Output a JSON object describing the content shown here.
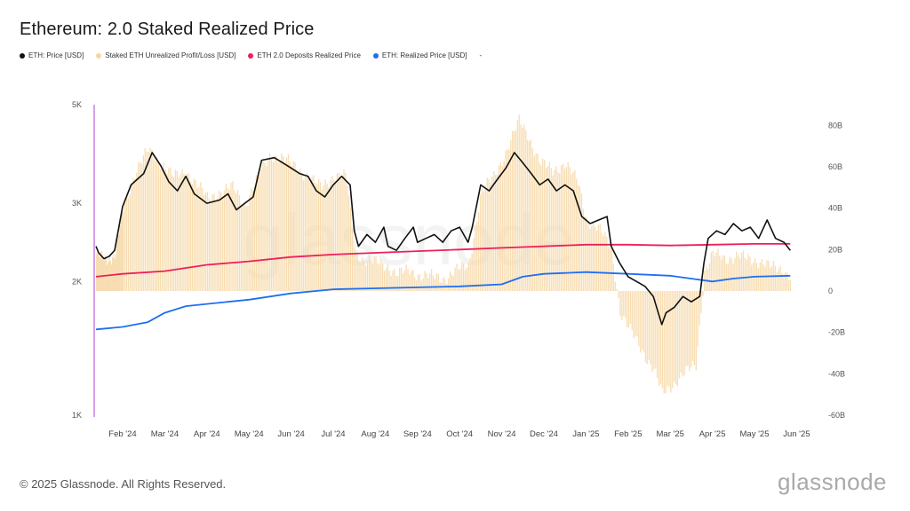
{
  "chart_data": {
    "type": "line",
    "title": "Ethereum: 2.0 Staked Realized Price",
    "legend": [
      {
        "label": "ETH: Price [USD]",
        "color": "#111111"
      },
      {
        "label": "Staked ETH Unrealized Profit/Loss [USD]",
        "color": "#f6d7a4"
      },
      {
        "label": "ETH 2.0 Deposits Realized Price",
        "color": "#ee1f59"
      },
      {
        "label": "ETH: Realized Price [USD]",
        "color": "#1f6ff0"
      },
      {
        "label": "-",
        "color": ""
      }
    ],
    "x_ticks": [
      "Feb '24",
      "Mar '24",
      "Apr '24",
      "May '24",
      "Jun '24",
      "Jul '24",
      "Aug '24",
      "Sep '24",
      "Oct '24",
      "Nov '24",
      "Dec '24",
      "Jan '25",
      "Feb '25",
      "Mar '25",
      "Apr '25",
      "May '25",
      "Jun '25"
    ],
    "y_left": {
      "scale": "log",
      "range": [
        1000,
        5000
      ],
      "ticks": [
        {
          "v": 5000,
          "label": "5K"
        },
        {
          "v": 3000,
          "label": "3K"
        },
        {
          "v": 2000,
          "label": "2K"
        },
        {
          "v": 1000,
          "label": "1K"
        }
      ]
    },
    "y_right": {
      "range": [
        -60,
        90
      ],
      "unit": "B",
      "ticks": [
        80,
        60,
        40,
        20,
        0,
        -20,
        -40,
        -60
      ],
      "tick_labels": [
        "80B",
        "60B",
        "40B",
        "20B",
        "0",
        "-20B",
        "-40B",
        "-60B"
      ]
    },
    "x_month_range": [
      0,
      17.2
    ],
    "series": [
      {
        "name": "ETH: Price [USD]",
        "color": "#111111",
        "points": [
          [
            0,
            2400
          ],
          [
            0.1,
            2320
          ],
          [
            0.3,
            2250
          ],
          [
            0.5,
            2280
          ],
          [
            0.7,
            2350
          ],
          [
            1.0,
            2950
          ],
          [
            1.2,
            3300
          ],
          [
            1.5,
            3500
          ],
          [
            1.7,
            3900
          ],
          [
            1.9,
            3650
          ],
          [
            2.1,
            3350
          ],
          [
            2.3,
            3200
          ],
          [
            2.5,
            3450
          ],
          [
            2.7,
            3150
          ],
          [
            3.0,
            3000
          ],
          [
            3.3,
            3050
          ],
          [
            3.5,
            3150
          ],
          [
            3.7,
            2900
          ],
          [
            3.9,
            3000
          ],
          [
            4.1,
            3100
          ],
          [
            4.3,
            3750
          ],
          [
            4.6,
            3800
          ],
          [
            4.9,
            3650
          ],
          [
            5.2,
            3500
          ],
          [
            5.4,
            3450
          ],
          [
            5.6,
            3200
          ],
          [
            5.8,
            3100
          ],
          [
            6.0,
            3300
          ],
          [
            6.2,
            3450
          ],
          [
            6.4,
            3300
          ],
          [
            6.5,
            2600
          ],
          [
            6.6,
            2400
          ],
          [
            6.8,
            2550
          ],
          [
            7.0,
            2450
          ],
          [
            7.2,
            2650
          ],
          [
            7.3,
            2400
          ],
          [
            7.5,
            2350
          ],
          [
            7.7,
            2500
          ],
          [
            7.9,
            2650
          ],
          [
            8.0,
            2450
          ],
          [
            8.2,
            2500
          ],
          [
            8.4,
            2550
          ],
          [
            8.6,
            2450
          ],
          [
            8.8,
            2600
          ],
          [
            9.0,
            2650
          ],
          [
            9.2,
            2450
          ],
          [
            9.3,
            2650
          ],
          [
            9.5,
            3300
          ],
          [
            9.7,
            3200
          ],
          [
            9.9,
            3400
          ],
          [
            10.1,
            3600
          ],
          [
            10.3,
            3900
          ],
          [
            10.5,
            3700
          ],
          [
            10.7,
            3500
          ],
          [
            10.9,
            3300
          ],
          [
            11.1,
            3400
          ],
          [
            11.3,
            3200
          ],
          [
            11.5,
            3300
          ],
          [
            11.7,
            3200
          ],
          [
            11.9,
            2800
          ],
          [
            12.1,
            2700
          ],
          [
            12.3,
            2750
          ],
          [
            12.5,
            2800
          ],
          [
            12.6,
            2400
          ],
          [
            12.8,
            2200
          ],
          [
            13.0,
            2050
          ],
          [
            13.2,
            2000
          ],
          [
            13.4,
            1950
          ],
          [
            13.6,
            1850
          ],
          [
            13.8,
            1600
          ],
          [
            13.9,
            1700
          ],
          [
            14.1,
            1750
          ],
          [
            14.3,
            1850
          ],
          [
            14.5,
            1800
          ],
          [
            14.7,
            1850
          ],
          [
            14.8,
            2200
          ],
          [
            14.9,
            2500
          ],
          [
            15.1,
            2600
          ],
          [
            15.3,
            2550
          ],
          [
            15.5,
            2700
          ],
          [
            15.7,
            2600
          ],
          [
            15.9,
            2650
          ],
          [
            16.1,
            2500
          ],
          [
            16.3,
            2750
          ],
          [
            16.5,
            2500
          ],
          [
            16.7,
            2450
          ],
          [
            16.85,
            2350
          ]
        ]
      },
      {
        "name": "ETH 2.0 Deposits Realized Price",
        "color": "#ee1f59",
        "points": [
          [
            0,
            2050
          ],
          [
            1,
            2080
          ],
          [
            2,
            2110
          ],
          [
            3,
            2180
          ],
          [
            4,
            2220
          ],
          [
            5,
            2270
          ],
          [
            6,
            2300
          ],
          [
            7,
            2320
          ],
          [
            8,
            2340
          ],
          [
            9,
            2360
          ],
          [
            10,
            2380
          ],
          [
            11,
            2400
          ],
          [
            12,
            2420
          ],
          [
            13,
            2420
          ],
          [
            14,
            2410
          ],
          [
            15,
            2420
          ],
          [
            16,
            2430
          ],
          [
            16.85,
            2430
          ]
        ]
      },
      {
        "name": "ETH: Realized Price [USD]",
        "color": "#1f6ff0",
        "points": [
          [
            0,
            1560
          ],
          [
            1,
            1580
          ],
          [
            1.6,
            1620
          ],
          [
            2,
            1700
          ],
          [
            2.5,
            1760
          ],
          [
            3,
            1780
          ],
          [
            4,
            1820
          ],
          [
            5,
            1880
          ],
          [
            6,
            1920
          ],
          [
            7,
            1930
          ],
          [
            8,
            1940
          ],
          [
            9,
            1950
          ],
          [
            10,
            1970
          ],
          [
            10.5,
            2050
          ],
          [
            11,
            2080
          ],
          [
            12,
            2100
          ],
          [
            12.5,
            2090
          ],
          [
            13,
            2080
          ],
          [
            14,
            2060
          ],
          [
            15,
            2000
          ],
          [
            15.5,
            2030
          ],
          [
            16,
            2050
          ],
          [
            16.85,
            2060
          ]
        ]
      },
      {
        "name": "Staked ETH Unrealized Profit/Loss [USD]",
        "color": "#f6d7a4",
        "unit": "B",
        "points": [
          [
            0,
            18
          ],
          [
            0.3,
            15
          ],
          [
            0.7,
            17
          ],
          [
            1.0,
            40
          ],
          [
            1.3,
            58
          ],
          [
            1.6,
            68
          ],
          [
            1.9,
            62
          ],
          [
            2.2,
            55
          ],
          [
            2.5,
            58
          ],
          [
            2.8,
            50
          ],
          [
            3.0,
            45
          ],
          [
            3.3,
            48
          ],
          [
            3.6,
            50
          ],
          [
            3.9,
            42
          ],
          [
            4.2,
            55
          ],
          [
            4.5,
            66
          ],
          [
            4.8,
            64
          ],
          [
            5.1,
            60
          ],
          [
            5.4,
            55
          ],
          [
            5.7,
            50
          ],
          [
            6.0,
            56
          ],
          [
            6.3,
            55
          ],
          [
            6.5,
            20
          ],
          [
            6.7,
            15
          ],
          [
            7.0,
            14
          ],
          [
            7.3,
            12
          ],
          [
            7.5,
            8
          ],
          [
            7.8,
            10
          ],
          [
            8.0,
            8
          ],
          [
            8.3,
            7
          ],
          [
            8.6,
            6
          ],
          [
            8.9,
            10
          ],
          [
            9.2,
            12
          ],
          [
            9.5,
            48
          ],
          [
            9.8,
            55
          ],
          [
            10.1,
            68
          ],
          [
            10.4,
            82
          ],
          [
            10.6,
            76
          ],
          [
            10.9,
            62
          ],
          [
            11.2,
            58
          ],
          [
            11.5,
            62
          ],
          [
            11.8,
            52
          ],
          [
            12.0,
            35
          ],
          [
            12.3,
            30
          ],
          [
            12.6,
            20
          ],
          [
            12.8,
            -10
          ],
          [
            13.0,
            -18
          ],
          [
            13.3,
            -28
          ],
          [
            13.6,
            -38
          ],
          [
            13.8,
            -50
          ],
          [
            14.0,
            -46
          ],
          [
            14.3,
            -40
          ],
          [
            14.6,
            -36
          ],
          [
            14.8,
            10
          ],
          [
            15.0,
            18
          ],
          [
            15.3,
            15
          ],
          [
            15.6,
            18
          ],
          [
            15.9,
            14
          ],
          [
            16.2,
            15
          ],
          [
            16.5,
            10
          ],
          [
            16.85,
            8
          ]
        ]
      }
    ]
  },
  "footer": {
    "copyright": "© 2025 Glassnode. All Rights Reserved.",
    "brand": "glassnode",
    "watermark": "glassnode"
  }
}
